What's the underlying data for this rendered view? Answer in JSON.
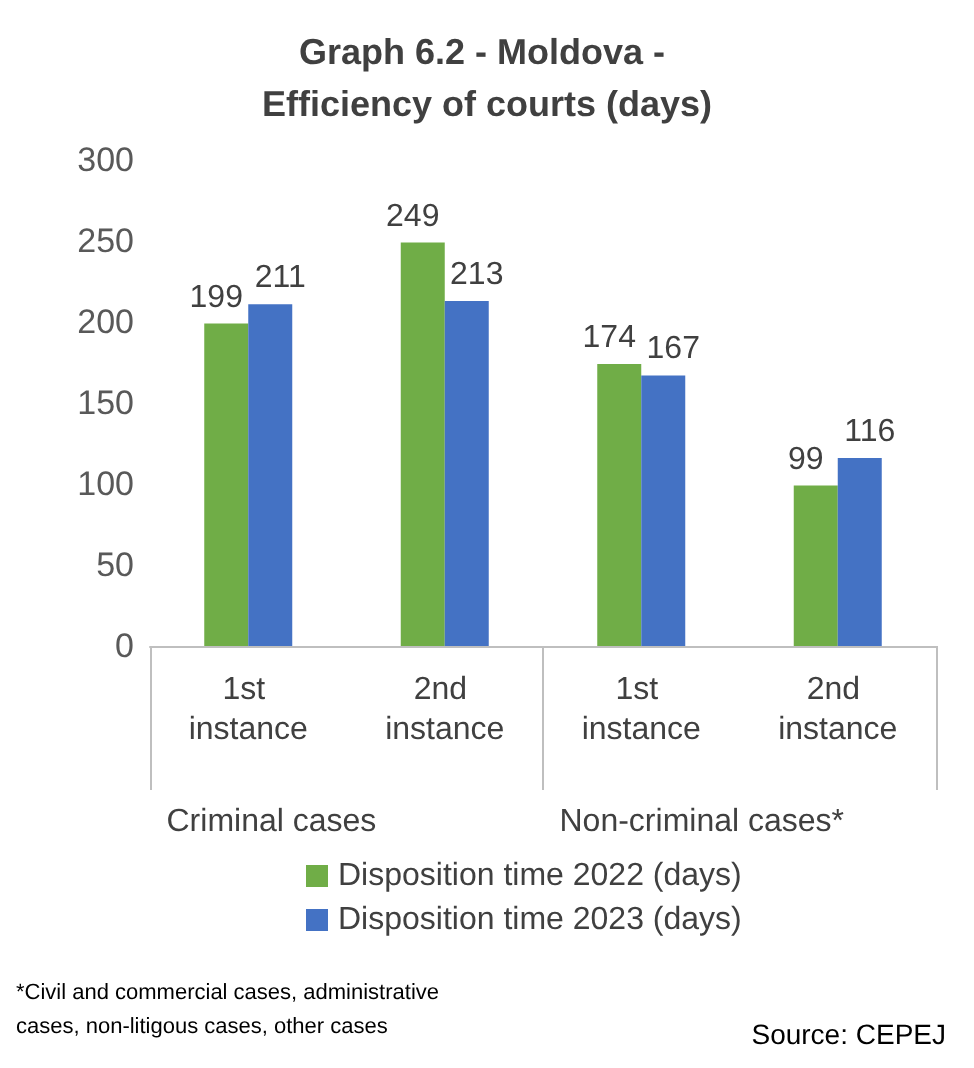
{
  "chart_data": {
    "type": "bar",
    "title": "Graph 6.2 - Moldova - Efficiency of courts (days)",
    "categories": [
      "1st instance",
      "2nd instance",
      "1st instance",
      "2nd instance"
    ],
    "series": [
      {
        "name": "Disposition time 2022 (days)",
        "color": "#70ad47",
        "values": [
          199,
          249,
          174,
          99
        ]
      },
      {
        "name": "Disposition time 2023 (days)",
        "color": "#4472c4",
        "values": [
          211,
          213,
          167,
          116
        ]
      }
    ],
    "ylim": [
      0,
      300
    ],
    "yticks": [
      0,
      50,
      100,
      150,
      200,
      250,
      300
    ],
    "grid": false,
    "legend": "bottom",
    "data_labels": true,
    "annotations": [
      "Criminal cases",
      "Non-criminal cases*",
      "*Civil and commercial cases, administrative cases, non-litigous cases, other cases",
      "Source: CEPEJ"
    ]
  }
}
